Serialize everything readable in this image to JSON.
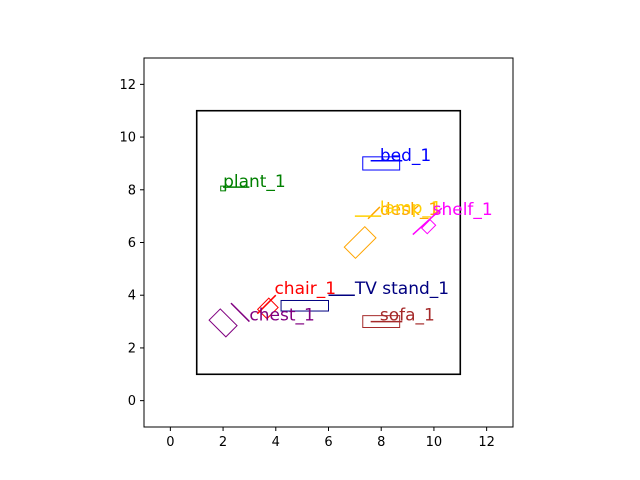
{
  "chart_data": {
    "type": "scatter",
    "title": "",
    "xlabel": "",
    "ylabel": "",
    "xlim": [
      -1,
      13
    ],
    "ylim": [
      -1,
      13
    ],
    "xticks": [
      0,
      2,
      4,
      6,
      8,
      10,
      12
    ],
    "yticks": [
      0,
      2,
      4,
      6,
      8,
      10,
      12
    ],
    "grid": false,
    "room": {
      "x0": 1,
      "y0": 1,
      "x1": 11,
      "y1": 11,
      "color": "#000000"
    },
    "objects": [
      {
        "name": "bed_1",
        "color": "#0000ff",
        "cx": 8.0,
        "cy": 9.0,
        "w": 1.4,
        "h": 0.5,
        "angle": 0,
        "line": [
          [
            7.6,
            9.1
          ],
          [
            8.8,
            9.1
          ]
        ],
        "label_x": 7.95,
        "label_y": 9.1
      },
      {
        "name": "plant_1",
        "color": "#008000",
        "cx": 2.0,
        "cy": 8.05,
        "w": 0.18,
        "h": 0.18,
        "angle": 0,
        "line": [
          [
            2.0,
            8.1
          ],
          [
            3.0,
            8.1
          ]
        ],
        "label_x": 2.0,
        "label_y": 8.1
      },
      {
        "name": "desk_1",
        "color": "#ffa500",
        "cx": 7.2,
        "cy": 6.0,
        "w": 1.1,
        "h": 0.6,
        "angle": 45,
        "line": [
          [
            7.5,
            6.9
          ],
          [
            7.95,
            7.35
          ]
        ],
        "label_x": 7.95,
        "label_y": 7.05
      },
      {
        "name": "lamp_1",
        "color": "#ffd000",
        "cx": null,
        "cy": null,
        "w": 0,
        "h": 0,
        "angle": 0,
        "line": [
          [
            7.0,
            7.0
          ],
          [
            8.0,
            7.0
          ]
        ],
        "label_x": 7.95,
        "label_y": 7.1
      },
      {
        "name": "shelf_1",
        "color": "#ff00ff",
        "cx": 9.8,
        "cy": 6.6,
        "w": 0.45,
        "h": 0.3,
        "angle": 45,
        "line": [
          [
            9.2,
            6.3
          ],
          [
            10.3,
            7.3
          ]
        ],
        "label_x": 9.95,
        "label_y": 7.05
      },
      {
        "name": "chair_1",
        "color": "#ff0000",
        "cx": 3.7,
        "cy": 3.5,
        "w": 0.6,
        "h": 0.5,
        "angle": 45,
        "line": [
          [
            3.3,
            3.3
          ],
          [
            4.0,
            4.0
          ]
        ],
        "label_x": 3.95,
        "label_y": 4.05
      },
      {
        "name": "TV stand_1",
        "color": "#000080",
        "cx": 5.1,
        "cy": 3.6,
        "w": 1.8,
        "h": 0.4,
        "angle": 0,
        "line": [
          [
            6.0,
            4.0
          ],
          [
            7.0,
            4.0
          ]
        ],
        "label_x": 7.0,
        "label_y": 4.05
      },
      {
        "name": "chest_1",
        "color": "#800080",
        "cx": 2.0,
        "cy": 2.95,
        "w": 0.9,
        "h": 0.6,
        "angle": -45,
        "line": [
          [
            2.3,
            3.7
          ],
          [
            3.0,
            3.0
          ]
        ],
        "label_x": 3.0,
        "label_y": 3.05
      },
      {
        "name": "sofa_1",
        "color": "#a52a2a",
        "cx": 8.0,
        "cy": 3.0,
        "w": 1.4,
        "h": 0.45,
        "angle": 0,
        "line": [
          [
            7.6,
            3.0
          ],
          [
            8.8,
            3.0
          ]
        ],
        "label_x": 7.95,
        "label_y": 3.05
      }
    ]
  }
}
